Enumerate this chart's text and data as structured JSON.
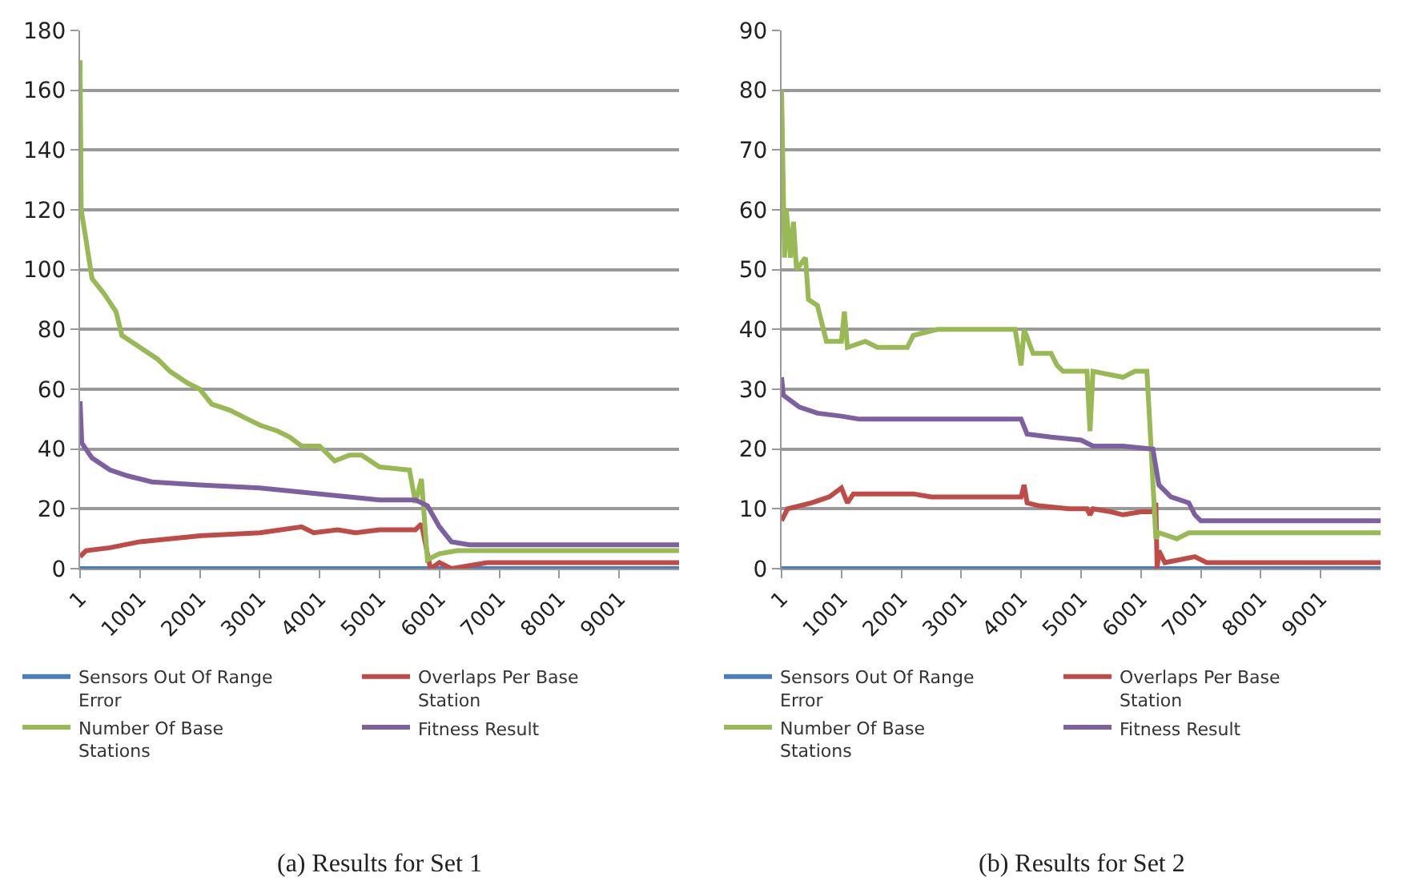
{
  "chart_data": [
    {
      "type": "line",
      "xlim": [
        1,
        10001
      ],
      "xticks": [
        1,
        1001,
        2001,
        3001,
        4001,
        5001,
        6001,
        7001,
        8001,
        9001
      ],
      "ylim": [
        0,
        180
      ],
      "yticks": [
        0,
        20,
        40,
        60,
        80,
        100,
        120,
        140,
        160,
        180
      ],
      "grid": "y",
      "legend": "bottom",
      "line_style": "solid",
      "marker": "none",
      "annotations": [
        "(a) Results for Set 1"
      ],
      "series": [
        {
          "name": "Sensors Out Of Range Error",
          "color": "#4a7ebb",
          "x": [
            1,
            10001
          ],
          "values": [
            0,
            0
          ]
        },
        {
          "name": "Overlaps Per Base Station",
          "color": "#be4b48",
          "x": [
            1,
            100,
            500,
            1000,
            1500,
            2000,
            3000,
            3700,
            3900,
            4300,
            4600,
            5000,
            5600,
            5700,
            5850,
            6000,
            6200,
            6800,
            10001
          ],
          "values": [
            4,
            6,
            7,
            9,
            10,
            11,
            12,
            14,
            12,
            13,
            12,
            13,
            13,
            15,
            0,
            2,
            0,
            2,
            2
          ]
        },
        {
          "name": "Number Of Base Stations",
          "color": "#98b954",
          "x": [
            1,
            20,
            100,
            200,
            400,
            600,
            700,
            1000,
            1300,
            1500,
            1800,
            2000,
            2200,
            2500,
            2800,
            3000,
            3300,
            3500,
            3700,
            4000,
            4250,
            4500,
            4700,
            5000,
            5500,
            5600,
            5700,
            5800,
            6000,
            6300,
            10001
          ],
          "values": [
            170,
            120,
            110,
            97,
            92,
            86,
            78,
            74,
            70,
            66,
            62,
            60,
            55,
            53,
            50,
            48,
            46,
            44,
            41,
            41,
            36,
            38,
            38,
            34,
            33,
            22,
            30,
            3,
            5,
            6,
            6
          ]
        },
        {
          "name": "Fitness Result",
          "color": "#7d60a0",
          "x": [
            1,
            30,
            200,
            500,
            800,
            1200,
            2000,
            3000,
            4000,
            5000,
            5600,
            5800,
            6000,
            6200,
            6500,
            10001
          ],
          "values": [
            56,
            42,
            37,
            33,
            31,
            29,
            28,
            27,
            25,
            23,
            23,
            21,
            14,
            9,
            8,
            8
          ]
        }
      ]
    },
    {
      "type": "line",
      "xlim": [
        1,
        10001
      ],
      "xticks": [
        1,
        1001,
        2001,
        3001,
        4001,
        5001,
        6001,
        7001,
        8001,
        9001
      ],
      "ylim": [
        0,
        90
      ],
      "yticks": [
        0,
        10,
        20,
        30,
        40,
        50,
        60,
        70,
        80,
        90
      ],
      "grid": "y",
      "legend": "bottom",
      "line_style": "solid",
      "marker": "none",
      "annotations": [
        "(b) Results for Set 2"
      ],
      "series": [
        {
          "name": "Sensors Out Of Range Error",
          "color": "#4a7ebb",
          "x": [
            1,
            10001
          ],
          "values": [
            0,
            0
          ]
        },
        {
          "name": "Overlaps Per Base Station",
          "color": "#be4b48",
          "x": [
            1,
            100,
            500,
            800,
            1000,
            1100,
            1200,
            2200,
            2500,
            4000,
            4050,
            4100,
            4300,
            4800,
            5100,
            5150,
            5200,
            5500,
            5700,
            6000,
            6200,
            6250,
            6270,
            6300,
            6400,
            6900,
            7100,
            10001
          ],
          "values": [
            8,
            10,
            11,
            12,
            13.5,
            11,
            12.5,
            12.5,
            12,
            12,
            14,
            11,
            10.5,
            10,
            10,
            9,
            10,
            9.5,
            9,
            9.5,
            9.5,
            11,
            0,
            3,
            1,
            2,
            1,
            1
          ]
        },
        {
          "name": "Number Of Base Stations",
          "color": "#98b954",
          "x": [
            1,
            50,
            80,
            150,
            200,
            250,
            400,
            450,
            600,
            750,
            1000,
            1050,
            1100,
            1400,
            1600,
            2100,
            2200,
            2600,
            3900,
            4000,
            4050,
            4200,
            4500,
            4600,
            4700,
            5100,
            5150,
            5200,
            5700,
            5900,
            6100,
            6150,
            6250,
            6300,
            6600,
            6800,
            10001
          ],
          "values": [
            80,
            52,
            60,
            52,
            58,
            50,
            52,
            45,
            44,
            38,
            38,
            43,
            37,
            38,
            37,
            37,
            39,
            40,
            40,
            34,
            40,
            36,
            36,
            34,
            33,
            33,
            23,
            33,
            32,
            33,
            33,
            24,
            5,
            6,
            5,
            6,
            6
          ]
        },
        {
          "name": "Fitness Result",
          "color": "#7d60a0",
          "x": [
            1,
            30,
            300,
            600,
            1000,
            1300,
            4000,
            4100,
            4500,
            5000,
            5200,
            5700,
            6200,
            6300,
            6500,
            6800,
            6900,
            7000,
            10001
          ],
          "values": [
            32,
            29,
            27,
            26,
            25.5,
            25,
            25,
            22.5,
            22,
            21.5,
            20.5,
            20.5,
            20,
            14,
            12,
            11,
            9,
            8,
            8
          ]
        }
      ]
    }
  ]
}
